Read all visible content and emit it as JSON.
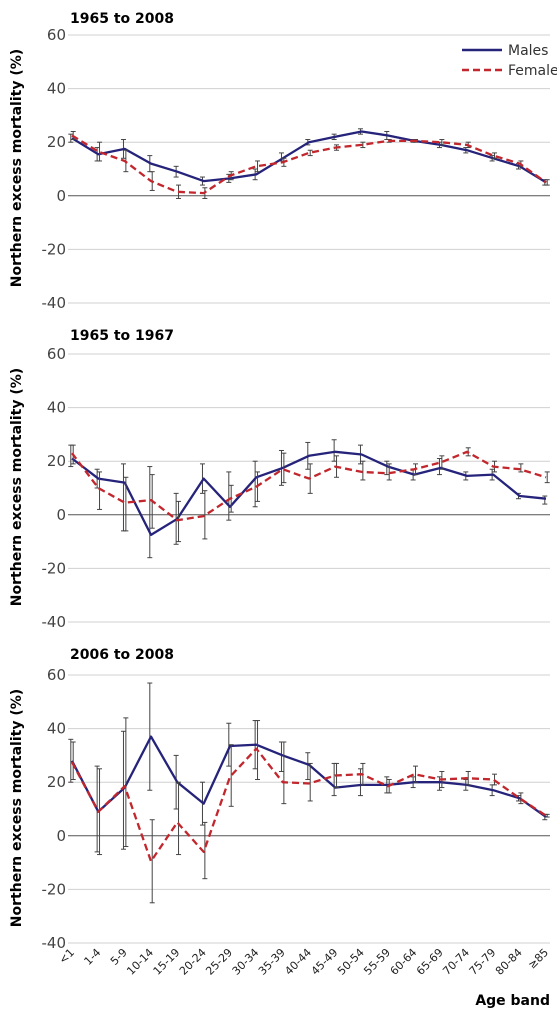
{
  "colors": {
    "males": "#25237a",
    "females": "#c1272d",
    "grid": "#d0d0d0",
    "zero": "#555555",
    "errorbar": "#444444"
  },
  "xlabel": "Age band",
  "legend": {
    "placement": "top-right",
    "males": "Males",
    "females": "Females"
  },
  "chart_data": [
    {
      "type": "line",
      "title": "1965 to 2008",
      "ylabel": "Northern excess mortality (%)",
      "ylim": [
        -40,
        60
      ],
      "yticks": [
        "60",
        "40",
        "20",
        "0",
        "-20",
        "-40"
      ],
      "grid": true,
      "categories": [
        "<1",
        "1-4",
        "5-9",
        "10-14",
        "15-19",
        "20-24",
        "25-29",
        "30-34",
        "35-39",
        "40-44",
        "45-49",
        "50-54",
        "55-59",
        "60-64",
        "65-69",
        "70-74",
        "75-79",
        "80-84",
        "≥85"
      ],
      "series": [
        {
          "name": "Males",
          "style": "solid",
          "values": [
            21.5,
            15.5,
            17.5,
            12,
            9,
            5.5,
            6.5,
            8,
            14,
            20,
            22,
            24,
            22.5,
            20.5,
            19,
            17,
            14,
            11,
            5
          ],
          "err": [
            [
              20,
              23
            ],
            [
              13,
              18
            ],
            [
              14,
              21
            ],
            [
              9,
              15
            ],
            [
              7,
              11
            ],
            [
              4,
              7
            ],
            [
              5,
              8
            ],
            [
              6,
              10
            ],
            [
              13,
              16
            ],
            [
              19,
              21
            ],
            [
              21,
              23
            ],
            [
              23,
              25
            ],
            [
              21,
              24
            ],
            [
              20,
              21
            ],
            [
              18,
              20
            ],
            [
              16,
              18
            ],
            [
              13,
              15
            ],
            [
              10,
              12
            ],
            [
              4,
              6
            ]
          ]
        },
        {
          "name": "Females",
          "style": "dashed",
          "values": [
            22.5,
            16.5,
            13,
            5.5,
            1.5,
            1,
            7.5,
            11,
            12.5,
            16,
            18,
            19,
            20.5,
            20.5,
            20,
            19,
            15,
            12,
            5
          ],
          "err": [
            [
              21,
              24
            ],
            [
              13,
              20
            ],
            [
              9,
              17
            ],
            [
              2,
              9
            ],
            [
              -1,
              4
            ],
            [
              -1,
              3
            ],
            [
              6,
              9
            ],
            [
              9,
              13
            ],
            [
              11,
              14
            ],
            [
              15,
              17
            ],
            [
              17,
              19
            ],
            [
              18,
              20
            ],
            [
              20,
              21
            ],
            [
              20,
              21
            ],
            [
              19,
              21
            ],
            [
              18,
              20
            ],
            [
              14,
              16
            ],
            [
              11,
              13
            ],
            [
              4,
              6
            ]
          ]
        }
      ]
    },
    {
      "type": "line",
      "title": "1965 to 1967",
      "ylabel": "Northern excess mortality (%)",
      "ylim": [
        -40,
        60
      ],
      "yticks": [
        "60",
        "40",
        "20",
        "0",
        "-20",
        "-40"
      ],
      "grid": true,
      "categories": [
        "<1",
        "1-4",
        "5-9",
        "10-14",
        "15-19",
        "20-24",
        "25-29",
        "30-34",
        "35-39",
        "40-44",
        "45-49",
        "50-54",
        "55-59",
        "60-64",
        "65-69",
        "70-74",
        "75-79",
        "80-84",
        "≥85"
      ],
      "series": [
        {
          "name": "Males",
          "style": "solid",
          "values": [
            21,
            13.5,
            12,
            -7.5,
            -1.5,
            13.5,
            3,
            14,
            17.5,
            22,
            23.5,
            22.5,
            18,
            15,
            17.5,
            14.5,
            15,
            7,
            6
          ],
          "err": [
            [
              18,
              26
            ],
            [
              10,
              17
            ],
            [
              -6,
              19
            ],
            [
              -16,
              18
            ],
            [
              -11,
              8
            ],
            [
              8,
              19
            ],
            [
              -2,
              16
            ],
            [
              3,
              20
            ],
            [
              11,
              24
            ],
            [
              17,
              27
            ],
            [
              20,
              28
            ],
            [
              19,
              26
            ],
            [
              15,
              20
            ],
            [
              13,
              17
            ],
            [
              15,
              21
            ],
            [
              13,
              16
            ],
            [
              13,
              17
            ],
            [
              6,
              8
            ],
            [
              4,
              7
            ]
          ]
        },
        {
          "name": "Females",
          "style": "dashed",
          "values": [
            23,
            10,
            4.5,
            5.5,
            -2,
            -0.5,
            6,
            10.5,
            17,
            13.5,
            18,
            16,
            15.5,
            17,
            19.5,
            23.5,
            18,
            17,
            14
          ],
          "err": [
            [
              19,
              26
            ],
            [
              2,
              16
            ],
            [
              -6,
              14
            ],
            [
              -5,
              15
            ],
            [
              -10,
              5
            ],
            [
              -9,
              9
            ],
            [
              1,
              11
            ],
            [
              5,
              16
            ],
            [
              12,
              23
            ],
            [
              8,
              19
            ],
            [
              14,
              22
            ],
            [
              13,
              20
            ],
            [
              13,
              19
            ],
            [
              15,
              19
            ],
            [
              17,
              22
            ],
            [
              22,
              25
            ],
            [
              16,
              20
            ],
            [
              16,
              19
            ],
            [
              12,
              16
            ]
          ]
        }
      ]
    },
    {
      "type": "line",
      "title": "2006 to 2008",
      "ylabel": "Northern excess mortality (%)",
      "ylim": [
        -40,
        60
      ],
      "yticks": [
        "60",
        "40",
        "20",
        "0",
        "-20",
        "-40"
      ],
      "grid": true,
      "categories": [
        "<1",
        "1-4",
        "5-9",
        "10-14",
        "15-19",
        "20-24",
        "25-29",
        "30-34",
        "35-39",
        "40-44",
        "45-49",
        "50-54",
        "55-59",
        "60-64",
        "65-69",
        "70-74",
        "75-79",
        "80-84",
        "≥85"
      ],
      "series": [
        {
          "name": "Males",
          "style": "solid",
          "values": [
            28,
            9,
            18,
            37,
            20,
            12,
            33.5,
            34,
            30,
            26.5,
            18,
            19,
            19,
            20,
            20,
            19,
            17,
            14,
            7
          ],
          "err": [
            [
              20,
              36
            ],
            [
              -6,
              26
            ],
            [
              -5,
              39
            ],
            [
              17,
              57
            ],
            [
              10,
              30
            ],
            [
              4,
              20
            ],
            [
              26,
              42
            ],
            [
              25,
              43
            ],
            [
              24,
              35
            ],
            [
              21,
              31
            ],
            [
              15,
              27
            ],
            [
              15,
              25
            ],
            [
              16,
              22
            ],
            [
              18,
              22
            ],
            [
              17,
              22
            ],
            [
              17,
              21
            ],
            [
              15,
              19
            ],
            [
              13,
              15
            ],
            [
              6,
              8
            ]
          ]
        },
        {
          "name": "Females",
          "style": "dashed",
          "values": [
            27.5,
            9,
            18.5,
            -9.5,
            5,
            -6,
            22,
            32.5,
            20,
            19.5,
            22.5,
            23,
            18.5,
            23,
            21,
            21.5,
            21,
            14,
            7.5
          ],
          "err": [
            [
              21,
              35
            ],
            [
              -7,
              25
            ],
            [
              -4,
              44
            ],
            [
              -25,
              6
            ],
            [
              -7,
              20
            ],
            [
              -16,
              5
            ],
            [
              11,
              34
            ],
            [
              21,
              43
            ],
            [
              12,
              35
            ],
            [
              13,
              27
            ],
            [
              18,
              27
            ],
            [
              19,
              27
            ],
            [
              16,
              21
            ],
            [
              20,
              26
            ],
            [
              18,
              24
            ],
            [
              19,
              24
            ],
            [
              19,
              23
            ],
            [
              12,
              16
            ],
            [
              7,
              8
            ]
          ]
        }
      ]
    }
  ]
}
